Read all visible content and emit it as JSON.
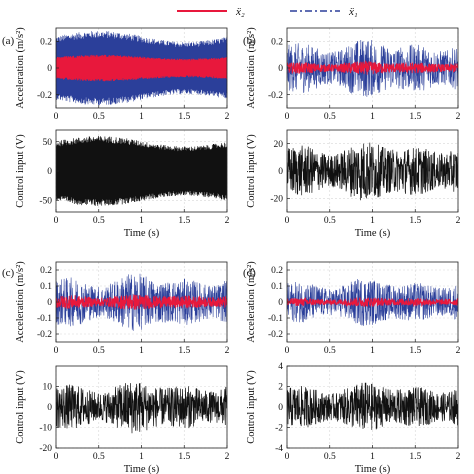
{
  "legend": {
    "items": [
      {
        "label": "ẍ₂",
        "color": "#e8183c",
        "style": "solid"
      },
      {
        "label": "ẍ₁",
        "color": "#2b3f9a",
        "style": "dashdot"
      }
    ]
  },
  "colors": {
    "x2": "#e8183c",
    "x1": "#2b3f9a",
    "control": "#111111",
    "control_light": "#555555",
    "grid": "#d7d7d7",
    "axis": "#222222"
  },
  "chart_data": [
    {
      "panel": "(a)",
      "type": "line",
      "ylabel": "Acceleration (m/s²)",
      "xlabel": "",
      "xlim": [
        0,
        2
      ],
      "ylim": [
        -0.3,
        0.3
      ],
      "xticks": [
        "0",
        "0.5",
        "1",
        "1.5",
        "2"
      ],
      "yticks": [
        {
          "v": 0.2,
          "t": "0.2"
        },
        {
          "v": 0,
          "t": "0"
        },
        {
          "v": -0.2,
          "t": "-0.2"
        }
      ],
      "series": [
        {
          "key": "x1",
          "amplitude": 0.28,
          "mode": "periodic"
        },
        {
          "key": "x2",
          "amplitude": 0.1,
          "mode": "periodic"
        }
      ]
    },
    {
      "panel": "(b)",
      "type": "line",
      "ylabel": "Acceleration (m/s²)",
      "xlabel": "",
      "xlim": [
        0,
        2
      ],
      "ylim": [
        -0.3,
        0.3
      ],
      "xticks": [
        "0",
        "0.5",
        "1",
        "1.5",
        "2"
      ],
      "yticks": [
        {
          "v": 0.2,
          "t": "0.2"
        },
        {
          "v": 0,
          "t": "0"
        },
        {
          "v": -0.2,
          "t": "-0.2"
        }
      ],
      "series": [
        {
          "key": "x1",
          "amplitude": 0.22,
          "mode": "noise"
        },
        {
          "key": "x2",
          "amplitude": 0.05,
          "mode": "noise"
        }
      ]
    },
    {
      "panel": "",
      "type": "line",
      "ylabel": "Control input (V)",
      "xlabel": "Time (s)",
      "xlim": [
        0,
        2
      ],
      "ylim": [
        -70,
        70
      ],
      "xticks": [
        "0",
        "0.5",
        "1",
        "1.5",
        "2"
      ],
      "yticks": [
        {
          "v": 50,
          "t": "50"
        },
        {
          "v": 0,
          "t": "0"
        },
        {
          "v": -50,
          "t": "-50"
        }
      ],
      "series": [
        {
          "key": "control",
          "amplitude": 60,
          "mode": "periodic"
        }
      ]
    },
    {
      "panel": "",
      "type": "line",
      "ylabel": "Control input (V)",
      "xlabel": "Time (s)",
      "xlim": [
        0,
        2
      ],
      "ylim": [
        -30,
        30
      ],
      "xticks": [
        "0",
        "0.5",
        "1",
        "1.5",
        "2"
      ],
      "yticks": [
        {
          "v": 20,
          "t": "20"
        },
        {
          "v": 0,
          "t": "0"
        },
        {
          "v": -20,
          "t": "-20"
        }
      ],
      "series": [
        {
          "key": "control",
          "amplitude": 22,
          "mode": "noise"
        }
      ]
    },
    {
      "panel": "(c)",
      "type": "line",
      "ylabel": "Acceleration (m/s²)",
      "xlabel": "",
      "xlim": [
        0,
        2
      ],
      "ylim": [
        -0.25,
        0.25
      ],
      "xticks": [
        "0",
        "0.5",
        "1",
        "1.5",
        "2"
      ],
      "yticks": [
        {
          "v": 0.2,
          "t": "0.2"
        },
        {
          "v": 0.1,
          "t": "0.1"
        },
        {
          "v": 0,
          "t": "0"
        },
        {
          "v": -0.1,
          "t": "-0.1"
        },
        {
          "v": -0.2,
          "t": "-0.2"
        }
      ],
      "series": [
        {
          "key": "x1",
          "amplitude": 0.18,
          "mode": "noise"
        },
        {
          "key": "x2",
          "amplitude": 0.05,
          "mode": "noise"
        }
      ]
    },
    {
      "panel": "(d)",
      "type": "line",
      "ylabel": "Acceleration (m/s²)",
      "xlabel": "",
      "xlim": [
        0,
        2
      ],
      "ylim": [
        -0.25,
        0.25
      ],
      "xticks": [
        "0",
        "0.5",
        "1",
        "1.5",
        "2"
      ],
      "yticks": [
        {
          "v": 0.2,
          "t": "0.2"
        },
        {
          "v": 0.1,
          "t": "0.1"
        },
        {
          "v": 0,
          "t": "0"
        },
        {
          "v": -0.1,
          "t": "-0.1"
        },
        {
          "v": -0.2,
          "t": "-0.2"
        }
      ],
      "series": [
        {
          "key": "x1",
          "amplitude": 0.15,
          "mode": "noise"
        },
        {
          "key": "x2",
          "amplitude": 0.03,
          "mode": "noise"
        }
      ]
    },
    {
      "panel": "",
      "type": "line",
      "ylabel": "Control input (V)",
      "xlabel": "Time (s)",
      "xlim": [
        0,
        2
      ],
      "ylim": [
        -20,
        20
      ],
      "xticks": [
        "0",
        "0.5",
        "1",
        "1.5",
        "2"
      ],
      "yticks": [
        {
          "v": 10,
          "t": "10"
        },
        {
          "v": 0,
          "t": "0"
        },
        {
          "v": -10,
          "t": "-10"
        },
        {
          "v": -20,
          "t": "-20"
        }
      ],
      "series": [
        {
          "key": "control",
          "amplitude": 13,
          "mode": "noise"
        }
      ]
    },
    {
      "panel": "",
      "type": "line",
      "ylabel": "Control input (V)",
      "xlabel": "Time (s)",
      "xlim": [
        0,
        2
      ],
      "ylim": [
        -4,
        4
      ],
      "xticks": [
        "0",
        "0.5",
        "1",
        "1.5",
        "2"
      ],
      "yticks": [
        {
          "v": 4,
          "t": "4"
        },
        {
          "v": 2,
          "t": "2"
        },
        {
          "v": 0,
          "t": "0"
        },
        {
          "v": -2,
          "t": "-2"
        },
        {
          "v": -4,
          "t": "-4"
        }
      ],
      "series": [
        {
          "key": "control",
          "amplitude": 2.4,
          "mode": "noise"
        }
      ]
    }
  ]
}
